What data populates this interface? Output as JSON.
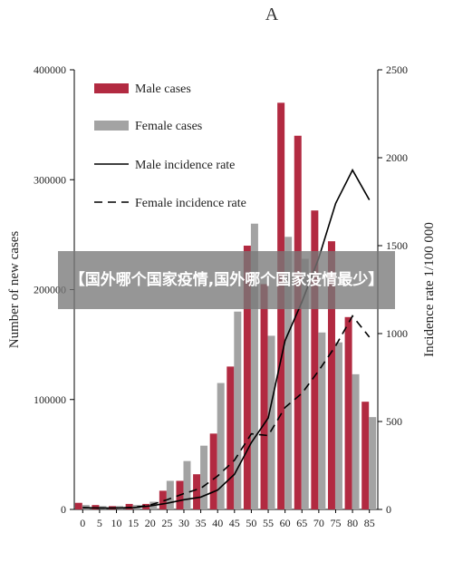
{
  "overlay": {
    "text": "【国外哪个国家疫情,国外哪个国家疫情最少】"
  },
  "chart_data": {
    "type": "bar",
    "panel_label": "A",
    "categories": [
      "0",
      "5",
      "10",
      "15",
      "20",
      "25",
      "30",
      "35",
      "40",
      "45",
      "50",
      "55",
      "60",
      "65",
      "70",
      "75",
      "80",
      "85"
    ],
    "series": [
      {
        "name": "Male cases",
        "kind": "bar",
        "axis": "left",
        "color": "#b22a41",
        "values": [
          6000,
          4000,
          3000,
          5000,
          5000,
          17000,
          26000,
          32000,
          69000,
          130000,
          240000,
          205000,
          370000,
          340000,
          272000,
          244000,
          175000,
          98000
        ]
      },
      {
        "name": "Female cases",
        "kind": "bar",
        "axis": "left",
        "color": "#a3a3a3",
        "values": [
          4000,
          3000,
          3000,
          4000,
          7000,
          26000,
          44000,
          58000,
          115000,
          180000,
          260000,
          158000,
          248000,
          228000,
          161000,
          152000,
          123000,
          84000
        ]
      },
      {
        "name": "Male incidence rate",
        "kind": "line",
        "axis": "right",
        "color": "#000000",
        "dash": "",
        "values": [
          10,
          8,
          8,
          10,
          20,
          35,
          55,
          70,
          110,
          200,
          380,
          520,
          960,
          1180,
          1430,
          1740,
          1930,
          1760
        ]
      },
      {
        "name": "Female incidence rate",
        "kind": "line",
        "axis": "right",
        "color": "#000000",
        "dash": "dashed",
        "values": [
          10,
          8,
          8,
          12,
          25,
          55,
          90,
          120,
          190,
          280,
          430,
          420,
          580,
          660,
          790,
          930,
          1100,
          980
        ]
      }
    ],
    "ylabel": "Number of new cases",
    "y2label": "Incidence rate 1/100 000",
    "ylim": [
      0,
      400000
    ],
    "y2lim": [
      0,
      2500
    ],
    "yticks": [
      "0",
      "100000",
      "200000",
      "300000",
      "400000"
    ],
    "y2ticks": [
      "0",
      "500",
      "1000",
      "1500",
      "2000",
      "2500"
    ],
    "legend_position": "top-left",
    "grid": false
  }
}
